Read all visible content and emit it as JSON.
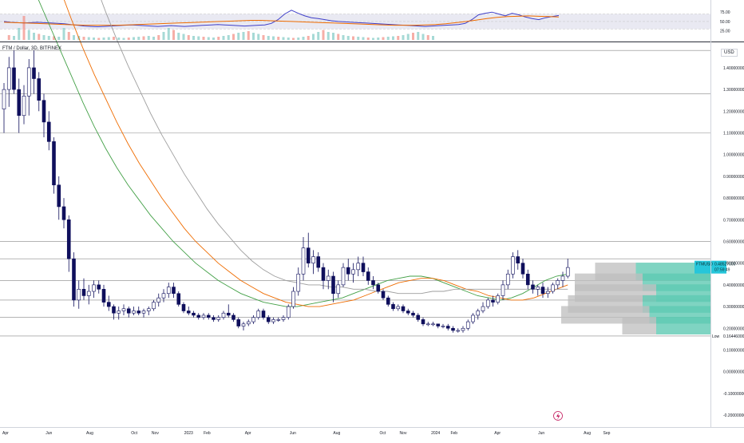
{
  "header": {
    "symbol_line": "FTM / Dollar, 3D, BITFINEX",
    "currency": "USD"
  },
  "colors": {
    "candle": "#0f0f5c",
    "ma_green": "#43a047",
    "ma_orange": "#ef6c00",
    "ma_gray": "#9e9e9e",
    "rsi_line": "#3f3fc9",
    "rsi_ma": "#ef6c00",
    "level_line": "#888888",
    "vp_gray": "#bdbdbd",
    "vp_teal": "#5fc9b3",
    "last_price_bg": "#26c6da",
    "vol_red": "#f28b82",
    "vol_green": "#80cbc4"
  },
  "price_axis": {
    "ticks": [
      "1.40000000",
      "1.30000000",
      "1.20000000",
      "1.10000000",
      "1.00000000",
      "0.90000000",
      "0.80000000",
      "0.70000000",
      "0.60000000",
      "0.50000000",
      "0.40000000",
      "0.30000000",
      "0.20000000",
      "0.10000000",
      "0.00000000",
      "-0.10000000",
      "-0.20000000"
    ],
    "tick_values": [
      1.4,
      1.3,
      1.2,
      1.1,
      1.0,
      0.9,
      0.8,
      0.7,
      0.6,
      0.5,
      0.4,
      0.3,
      0.2,
      0.1,
      0.0,
      -0.1,
      -0.2
    ],
    "range": [
      -0.255,
      1.51
    ],
    "last_price_symbol": "FTMUSD",
    "last_price_value": "0.48527000",
    "countdown": "07:59:49",
    "low_label": "Low",
    "low_value": "0.16446000",
    "low_numeric": 0.16446
  },
  "rsi_axis": {
    "ticks": [
      "75.00",
      "50.00",
      "25.00"
    ],
    "tick_values": [
      75,
      50,
      25
    ],
    "range": [
      18,
      86
    ]
  },
  "time_axis": {
    "labels": [
      "Apr",
      "Jun",
      "Aug",
      "Oct",
      "Nov",
      "2023",
      "Feb",
      "Apr",
      "Jun",
      "Aug",
      "Oct",
      "Nov",
      "2024",
      "Feb",
      "Apr",
      "Jun",
      "Aug",
      "Sep"
    ],
    "positions": [
      0.3,
      9.0,
      17.2,
      26.1,
      30.3,
      37.0,
      40.7,
      48.9,
      57.9,
      66.7,
      75.9,
      80.0,
      86.5,
      90.2,
      98.9,
      107.7,
      116.9,
      120.8
    ]
  },
  "chart_data": {
    "type": "candlestick",
    "symbol": "FTM / Dollar",
    "timeframe": "3D",
    "exchange": "BITFINEX",
    "currency": "USD",
    "x_unit": "3-day bars from the first visible bar",
    "ohlc": [
      [
        1.21,
        1.33,
        1.1,
        1.3
      ],
      [
        1.3,
        1.45,
        1.22,
        1.4
      ],
      [
        1.4,
        1.48,
        1.28,
        1.3
      ],
      [
        1.3,
        1.35,
        1.1,
        1.18
      ],
      [
        1.18,
        1.32,
        1.14,
        1.27
      ],
      [
        1.27,
        1.44,
        1.18,
        1.4
      ],
      [
        1.4,
        1.48,
        1.28,
        1.35
      ],
      [
        1.35,
        1.38,
        1.2,
        1.25
      ],
      [
        1.25,
        1.28,
        1.08,
        1.15
      ],
      [
        1.15,
        1.2,
        1.02,
        1.06
      ],
      [
        1.06,
        1.08,
        0.82,
        0.86
      ],
      [
        0.86,
        0.9,
        0.7,
        0.76
      ],
      [
        0.76,
        0.8,
        0.66,
        0.7
      ],
      [
        0.7,
        0.72,
        0.46,
        0.52
      ],
      [
        0.52,
        0.55,
        0.3,
        0.33
      ],
      [
        0.33,
        0.42,
        0.29,
        0.38
      ],
      [
        0.38,
        0.43,
        0.33,
        0.35
      ],
      [
        0.35,
        0.4,
        0.31,
        0.37
      ],
      [
        0.37,
        0.42,
        0.34,
        0.4
      ],
      [
        0.4,
        0.42,
        0.36,
        0.38
      ],
      [
        0.38,
        0.4,
        0.3,
        0.32
      ],
      [
        0.32,
        0.35,
        0.28,
        0.3
      ],
      [
        0.3,
        0.31,
        0.24,
        0.27
      ],
      [
        0.27,
        0.3,
        0.24,
        0.28
      ],
      [
        0.28,
        0.31,
        0.26,
        0.29
      ],
      [
        0.29,
        0.3,
        0.25,
        0.27
      ],
      [
        0.27,
        0.3,
        0.26,
        0.28
      ],
      [
        0.28,
        0.3,
        0.26,
        0.27
      ],
      [
        0.27,
        0.29,
        0.25,
        0.28
      ],
      [
        0.28,
        0.3,
        0.26,
        0.29
      ],
      [
        0.29,
        0.33,
        0.28,
        0.32
      ],
      [
        0.32,
        0.36,
        0.3,
        0.34
      ],
      [
        0.34,
        0.38,
        0.32,
        0.36
      ],
      [
        0.36,
        0.41,
        0.34,
        0.39
      ],
      [
        0.39,
        0.41,
        0.34,
        0.36
      ],
      [
        0.36,
        0.37,
        0.3,
        0.31
      ],
      [
        0.31,
        0.32,
        0.27,
        0.28
      ],
      [
        0.28,
        0.3,
        0.26,
        0.27
      ],
      [
        0.27,
        0.28,
        0.25,
        0.26
      ],
      [
        0.26,
        0.27,
        0.24,
        0.25
      ],
      [
        0.25,
        0.27,
        0.24,
        0.26
      ],
      [
        0.26,
        0.27,
        0.24,
        0.25
      ],
      [
        0.25,
        0.26,
        0.23,
        0.24
      ],
      [
        0.24,
        0.26,
        0.23,
        0.25
      ],
      [
        0.25,
        0.28,
        0.24,
        0.27
      ],
      [
        0.27,
        0.31,
        0.25,
        0.26
      ],
      [
        0.26,
        0.27,
        0.23,
        0.24
      ],
      [
        0.24,
        0.25,
        0.2,
        0.21
      ],
      [
        0.21,
        0.23,
        0.19,
        0.22
      ],
      [
        0.22,
        0.24,
        0.21,
        0.23
      ],
      [
        0.23,
        0.26,
        0.22,
        0.25
      ],
      [
        0.25,
        0.29,
        0.24,
        0.28
      ],
      [
        0.28,
        0.29,
        0.24,
        0.25
      ],
      [
        0.25,
        0.26,
        0.22,
        0.23
      ],
      [
        0.23,
        0.25,
        0.22,
        0.24
      ],
      [
        0.24,
        0.25,
        0.23,
        0.24
      ],
      [
        0.24,
        0.26,
        0.23,
        0.25
      ],
      [
        0.25,
        0.31,
        0.24,
        0.3
      ],
      [
        0.3,
        0.39,
        0.29,
        0.37
      ],
      [
        0.37,
        0.48,
        0.35,
        0.45
      ],
      [
        0.45,
        0.62,
        0.42,
        0.57
      ],
      [
        0.57,
        0.64,
        0.48,
        0.5
      ],
      [
        0.5,
        0.56,
        0.45,
        0.53
      ],
      [
        0.53,
        0.55,
        0.46,
        0.48
      ],
      [
        0.48,
        0.5,
        0.38,
        0.42
      ],
      [
        0.42,
        0.47,
        0.38,
        0.44
      ],
      [
        0.44,
        0.46,
        0.32,
        0.36
      ],
      [
        0.36,
        0.42,
        0.34,
        0.4
      ],
      [
        0.4,
        0.5,
        0.39,
        0.48
      ],
      [
        0.48,
        0.52,
        0.42,
        0.45
      ],
      [
        0.45,
        0.5,
        0.41,
        0.47
      ],
      [
        0.47,
        0.53,
        0.44,
        0.5
      ],
      [
        0.5,
        0.53,
        0.44,
        0.46
      ],
      [
        0.46,
        0.48,
        0.4,
        0.42
      ],
      [
        0.42,
        0.44,
        0.38,
        0.4
      ],
      [
        0.4,
        0.41,
        0.36,
        0.37
      ],
      [
        0.37,
        0.38,
        0.33,
        0.34
      ],
      [
        0.34,
        0.35,
        0.3,
        0.31
      ],
      [
        0.31,
        0.32,
        0.28,
        0.29
      ],
      [
        0.29,
        0.31,
        0.28,
        0.3
      ],
      [
        0.3,
        0.31,
        0.27,
        0.28
      ],
      [
        0.28,
        0.29,
        0.26,
        0.27
      ],
      [
        0.27,
        0.28,
        0.25,
        0.26
      ],
      [
        0.26,
        0.27,
        0.23,
        0.24
      ],
      [
        0.24,
        0.25,
        0.21,
        0.22
      ],
      [
        0.22,
        0.23,
        0.21,
        0.22
      ],
      [
        0.22,
        0.23,
        0.21,
        0.22
      ],
      [
        0.22,
        0.22,
        0.2,
        0.21
      ],
      [
        0.21,
        0.22,
        0.2,
        0.21
      ],
      [
        0.21,
        0.22,
        0.19,
        0.2
      ],
      [
        0.2,
        0.21,
        0.18,
        0.19
      ],
      [
        0.19,
        0.2,
        0.18,
        0.19
      ],
      [
        0.19,
        0.21,
        0.18,
        0.2
      ],
      [
        0.2,
        0.24,
        0.19,
        0.23
      ],
      [
        0.23,
        0.27,
        0.22,
        0.26
      ],
      [
        0.26,
        0.29,
        0.24,
        0.28
      ],
      [
        0.28,
        0.32,
        0.27,
        0.3
      ],
      [
        0.3,
        0.34,
        0.29,
        0.33
      ],
      [
        0.33,
        0.35,
        0.3,
        0.32
      ],
      [
        0.32,
        0.36,
        0.31,
        0.35
      ],
      [
        0.35,
        0.42,
        0.33,
        0.4
      ],
      [
        0.4,
        0.47,
        0.38,
        0.45
      ],
      [
        0.45,
        0.55,
        0.43,
        0.53
      ],
      [
        0.53,
        0.56,
        0.47,
        0.5
      ],
      [
        0.5,
        0.52,
        0.43,
        0.45
      ],
      [
        0.45,
        0.47,
        0.38,
        0.4
      ],
      [
        0.4,
        0.42,
        0.36,
        0.38
      ],
      [
        0.38,
        0.4,
        0.35,
        0.39
      ],
      [
        0.39,
        0.41,
        0.34,
        0.36
      ],
      [
        0.36,
        0.39,
        0.34,
        0.37
      ],
      [
        0.37,
        0.41,
        0.36,
        0.4
      ],
      [
        0.4,
        0.43,
        0.38,
        0.42
      ],
      [
        0.42,
        0.46,
        0.39,
        0.44
      ],
      [
        0.44,
        0.52,
        0.43,
        0.48
      ]
    ],
    "moving_averages": [
      {
        "color": "#43a047",
        "values": [
          2.15,
          2.0,
          1.85,
          1.72,
          1.6,
          1.48,
          1.36,
          1.24,
          1.13,
          1.03,
          0.94,
          0.86,
          0.79,
          0.72,
          0.66,
          0.6,
          0.55,
          0.5,
          0.46,
          0.42,
          0.39,
          0.36,
          0.34,
          0.32,
          0.31,
          0.3,
          0.3,
          0.31,
          0.32,
          0.33,
          0.34,
          0.36,
          0.38,
          0.4,
          0.42,
          0.43,
          0.44,
          0.44,
          0.43,
          0.41,
          0.39,
          0.37,
          0.35,
          0.34,
          0.33,
          0.34,
          0.36,
          0.39,
          0.42,
          0.44,
          0.45
        ]
      },
      {
        "color": "#ef6c00",
        "values": [
          2.5,
          2.35,
          2.2,
          2.05,
          1.9,
          1.76,
          1.62,
          1.49,
          1.37,
          1.26,
          1.15,
          1.05,
          0.96,
          0.88,
          0.8,
          0.73,
          0.66,
          0.6,
          0.55,
          0.5,
          0.46,
          0.42,
          0.39,
          0.36,
          0.34,
          0.32,
          0.31,
          0.3,
          0.3,
          0.31,
          0.32,
          0.33,
          0.35,
          0.37,
          0.39,
          0.41,
          0.42,
          0.43,
          0.43,
          0.42,
          0.4,
          0.38,
          0.37,
          0.35,
          0.34,
          0.33,
          0.33,
          0.34,
          0.36,
          0.38,
          0.4
        ]
      },
      {
        "color": "#9e9e9e",
        "values": [
          3.0,
          2.85,
          2.7,
          2.55,
          2.4,
          2.25,
          2.1,
          1.95,
          1.8,
          1.66,
          1.53,
          1.41,
          1.3,
          1.19,
          1.09,
          1.0,
          0.91,
          0.83,
          0.75,
          0.68,
          0.62,
          0.56,
          0.51,
          0.47,
          0.44,
          0.42,
          0.41,
          0.4,
          0.4,
          0.39,
          0.39,
          0.38,
          0.38,
          0.37,
          0.37,
          0.36,
          0.36,
          0.36,
          0.37,
          0.37,
          0.38,
          0.38,
          0.38,
          0.38,
          0.38,
          0.38,
          0.38,
          0.38,
          0.38,
          0.38,
          0.38
        ]
      }
    ],
    "horizontal_levels": [
      1.48,
      1.28,
      1.1,
      0.6,
      0.52,
      0.42,
      0.33,
      0.25,
      0.16446
    ],
    "volume_profile": [
      {
        "price": 0.46,
        "gray": 0.3,
        "teal": 0.55
      },
      {
        "price": 0.41,
        "gray": 0.5,
        "teal": 0.5
      },
      {
        "price": 0.36,
        "gray": 0.6,
        "teal": 0.4
      },
      {
        "price": 0.31,
        "gray": 0.55,
        "teal": 0.5
      },
      {
        "price": 0.26,
        "gray": 0.65,
        "teal": 0.45
      },
      {
        "price": 0.21,
        "gray": 0.25,
        "teal": 0.4
      }
    ],
    "rsi": {
      "length_note": "RSI panel",
      "values": [
        50,
        48,
        47,
        46,
        47,
        48,
        47,
        46,
        45,
        44,
        42,
        40,
        38,
        37,
        36,
        37,
        38,
        39,
        40,
        41,
        40,
        39,
        38,
        37,
        38,
        39,
        38,
        37,
        38,
        39,
        40,
        41,
        42,
        41,
        40,
        39,
        38,
        39,
        40,
        41,
        45,
        55,
        70,
        80,
        72,
        65,
        60,
        58,
        55,
        52,
        50,
        49,
        48,
        47,
        46,
        45,
        44,
        43,
        42,
        41,
        40,
        39,
        38,
        37,
        38,
        39,
        40,
        41,
        42,
        45,
        55,
        68,
        72,
        75,
        70,
        65,
        72,
        68,
        62,
        58,
        55,
        60,
        63,
        66
      ],
      "ma_values": [
        48,
        47,
        46,
        45,
        44,
        43,
        42,
        41,
        40,
        40,
        40,
        40,
        41,
        42,
        43,
        44,
        45,
        46,
        47,
        48,
        49,
        50,
        51,
        52,
        53,
        53,
        52,
        51,
        50,
        49,
        48,
        47,
        46,
        45,
        44,
        43,
        42,
        41,
        40,
        40,
        40,
        41,
        42,
        44,
        47,
        50,
        54,
        58,
        61,
        63,
        64,
        65,
        64,
        63,
        62
      ]
    },
    "volume": [
      12,
      10,
      30,
      60,
      25,
      18,
      15,
      12,
      10,
      9,
      8,
      30,
      20,
      12,
      10,
      8,
      7,
      6,
      5,
      6,
      7,
      8,
      6,
      5,
      6,
      7,
      8,
      9,
      10,
      8,
      12,
      20,
      30,
      25,
      18,
      15,
      12,
      10,
      9,
      8,
      7,
      6,
      8,
      10,
      12,
      15,
      18,
      20,
      22,
      18,
      15,
      12,
      10,
      9,
      8,
      7,
      6,
      5,
      6,
      8,
      10,
      15,
      20,
      25,
      20,
      18,
      15,
      12,
      10,
      9,
      8,
      7,
      6,
      5,
      6,
      7,
      8,
      9,
      10,
      12,
      15,
      18,
      20,
      15,
      12,
      10
    ]
  }
}
